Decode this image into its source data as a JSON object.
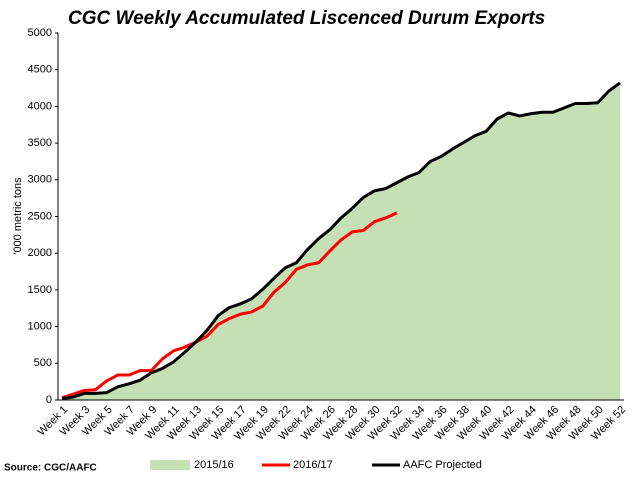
{
  "chart_data": {
    "type": "area-line",
    "title": "CGC Weekly Accumulated Liscenced Durum Exports",
    "y_label": "'000 metric tons",
    "source": "Source: CGC/AAFC",
    "categories": [
      "Week 1",
      null,
      "Week 3",
      null,
      "Week 5",
      null,
      "Week 7",
      null,
      "Week 9",
      null,
      "Week 11",
      null,
      "Week 13",
      null,
      "Week 15",
      null,
      "Week 17",
      null,
      "Week 19",
      null,
      "Week 22",
      null,
      "Week 24",
      null,
      "Week 26",
      null,
      "Week 28",
      null,
      "Week 30",
      null,
      "Week 32",
      null,
      "Week 34",
      null,
      "Week 36",
      null,
      "Week 38",
      null,
      "Week 40",
      null,
      "Week 42",
      null,
      "Week 44",
      null,
      "Week 46",
      null,
      "Week 48",
      null,
      "Week 50",
      null,
      "Week 52"
    ],
    "ylim": [
      0,
      5000
    ],
    "yticks": [
      0,
      500,
      1000,
      1500,
      2000,
      2500,
      3000,
      3500,
      4000,
      4500,
      5000
    ],
    "series": [
      {
        "name": "2015/16",
        "kind": "area",
        "color": "#c5e0b4",
        "values": [
          20,
          40,
          90,
          90,
          100,
          180,
          220,
          270,
          370,
          430,
          520,
          650,
          790,
          950,
          1150,
          1260,
          1310,
          1380,
          1510,
          1660,
          1800,
          1870,
          2050,
          2200,
          2320,
          2480,
          2610,
          2760,
          2850,
          2880,
          2960,
          3040,
          3100,
          3250,
          3320,
          3420,
          3510,
          3600,
          3660,
          3830,
          3910,
          3870,
          3900,
          3920,
          3920,
          3980,
          4040,
          4040,
          4050,
          4210,
          4320
        ]
      },
      {
        "name": "2016/17",
        "kind": "line",
        "color": "#ff0000",
        "values": [
          30,
          80,
          130,
          140,
          260,
          340,
          340,
          400,
          400,
          560,
          670,
          720,
          790,
          870,
          1030,
          1110,
          1170,
          1200,
          1280,
          1470,
          1600,
          1780,
          1840,
          1870,
          2030,
          2180,
          2290,
          2310,
          2430,
          2480,
          2550,
          null,
          null,
          null,
          null,
          null,
          null,
          null,
          null,
          null,
          null,
          null,
          null,
          null,
          null,
          null,
          null,
          null,
          null,
          null,
          null
        ]
      },
      {
        "name": "AAFC Projected",
        "kind": "line",
        "color": "#000000",
        "values": [
          20,
          40,
          90,
          90,
          100,
          180,
          220,
          270,
          370,
          430,
          520,
          650,
          790,
          950,
          1150,
          1260,
          1310,
          1380,
          1510,
          1660,
          1800,
          1870,
          2050,
          2200,
          2320,
          2480,
          2610,
          2760,
          2850,
          2880,
          2960,
          3040,
          3100,
          3250,
          3320,
          3420,
          3510,
          3600,
          3660,
          3830,
          3910,
          3870,
          3900,
          3920,
          3920,
          3980,
          4040,
          4040,
          4050,
          4210,
          4320
        ]
      }
    ]
  }
}
